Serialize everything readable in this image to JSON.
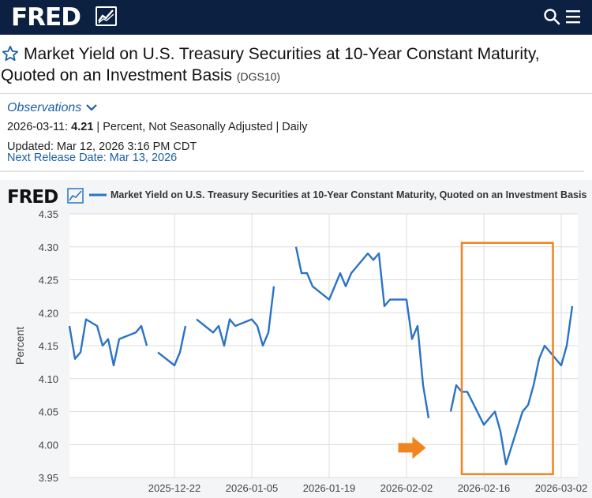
{
  "header": {
    "logo_text": "FRED",
    "search_icon": "search-icon",
    "menu_icon": "hamburger-menu-icon",
    "colors": {
      "bar": "#0c2041"
    }
  },
  "series": {
    "title_line1": "Market Yield on U.S. Treasury Securities at 10-Year Constant Maturity,",
    "title_line2": "Quoted on an Investment Basis",
    "id": "(DGS10)",
    "star_icon": "star-outline-icon"
  },
  "observations": {
    "label": "Observations",
    "date": "2026-03-11:",
    "value": "4.21",
    "details": "| Percent, Not Seasonally Adjusted | Daily",
    "updated": "Updated: Mar 12, 2026 3:16 PM CDT",
    "next_release": "Next Release Date: Mar 13, 2026"
  },
  "chart_data": {
    "type": "line",
    "logo_text": "FRED",
    "legend": "Market Yield on U.S. Treasury Securities at 10-Year Constant Maturity, Quoted on an Investment Basis",
    "ylabel": "Percent",
    "ylim": [
      3.95,
      4.35
    ],
    "yticks": [
      "4.35",
      "4.30",
      "4.25",
      "4.20",
      "4.15",
      "4.10",
      "4.05",
      "4.00",
      "3.95"
    ],
    "xticks": [
      {
        "day": 19,
        "label": "2025-12-22"
      },
      {
        "day": 33,
        "label": "2026-01-05"
      },
      {
        "day": 47,
        "label": "2026-01-19"
      },
      {
        "day": 61,
        "label": "2026-02-02"
      },
      {
        "day": 75,
        "label": "2026-02-16"
      },
      {
        "day": 89,
        "label": "2026-03-02"
      }
    ],
    "x_day_range": [
      0,
      92
    ],
    "line_color": "#2a73c5",
    "segments": [
      [
        [
          0,
          4.18
        ],
        [
          1,
          4.13
        ],
        [
          2,
          4.14
        ],
        [
          3,
          4.19
        ],
        [
          5,
          4.18
        ],
        [
          6,
          4.15
        ],
        [
          7,
          4.16
        ],
        [
          8,
          4.12
        ],
        [
          9,
          4.16
        ],
        [
          12,
          4.17
        ],
        [
          13,
          4.18
        ],
        [
          14,
          4.15
        ]
      ],
      [
        [
          16,
          4.14
        ],
        [
          19,
          4.12
        ],
        [
          20,
          4.14
        ],
        [
          21,
          4.18
        ]
      ],
      [
        [
          23,
          4.19
        ],
        [
          26,
          4.17
        ],
        [
          27,
          4.18
        ],
        [
          28,
          4.15
        ],
        [
          29,
          4.19
        ],
        [
          30,
          4.18
        ],
        [
          33,
          4.19
        ],
        [
          34,
          4.18
        ],
        [
          35,
          4.15
        ],
        [
          36,
          4.17
        ],
        [
          37,
          4.24
        ]
      ],
      [
        [
          41,
          4.3
        ],
        [
          42,
          4.26
        ],
        [
          43,
          4.26
        ],
        [
          44,
          4.24
        ],
        [
          47,
          4.22
        ],
        [
          49,
          4.26
        ],
        [
          50,
          4.24
        ],
        [
          51,
          4.26
        ],
        [
          54,
          4.29
        ],
        [
          55,
          4.28
        ],
        [
          56,
          4.29
        ],
        [
          57,
          4.21
        ],
        [
          58,
          4.22
        ],
        [
          61,
          4.22
        ],
        [
          62,
          4.16
        ],
        [
          63,
          4.18
        ],
        [
          64,
          4.09
        ],
        [
          65,
          4.04
        ]
      ],
      [
        [
          69,
          4.05
        ],
        [
          70,
          4.09
        ],
        [
          71,
          4.08
        ],
        [
          72,
          4.08
        ],
        [
          75,
          4.03
        ],
        [
          77,
          4.05
        ],
        [
          78,
          4.02
        ],
        [
          79,
          3.97
        ],
        [
          82,
          4.05
        ],
        [
          83,
          4.06
        ],
        [
          84,
          4.09
        ],
        [
          85,
          4.13
        ],
        [
          86,
          4.15
        ],
        [
          89,
          4.12
        ],
        [
          90,
          4.15
        ],
        [
          91,
          4.21
        ]
      ]
    ],
    "highlight": {
      "start_day": 71,
      "end_day": 87.5,
      "ymin": 3.955,
      "ymax": 4.306,
      "color": "#f0841e"
    },
    "arrow": {
      "day": 64.5,
      "value": 3.995,
      "color": "#f0841e"
    }
  }
}
